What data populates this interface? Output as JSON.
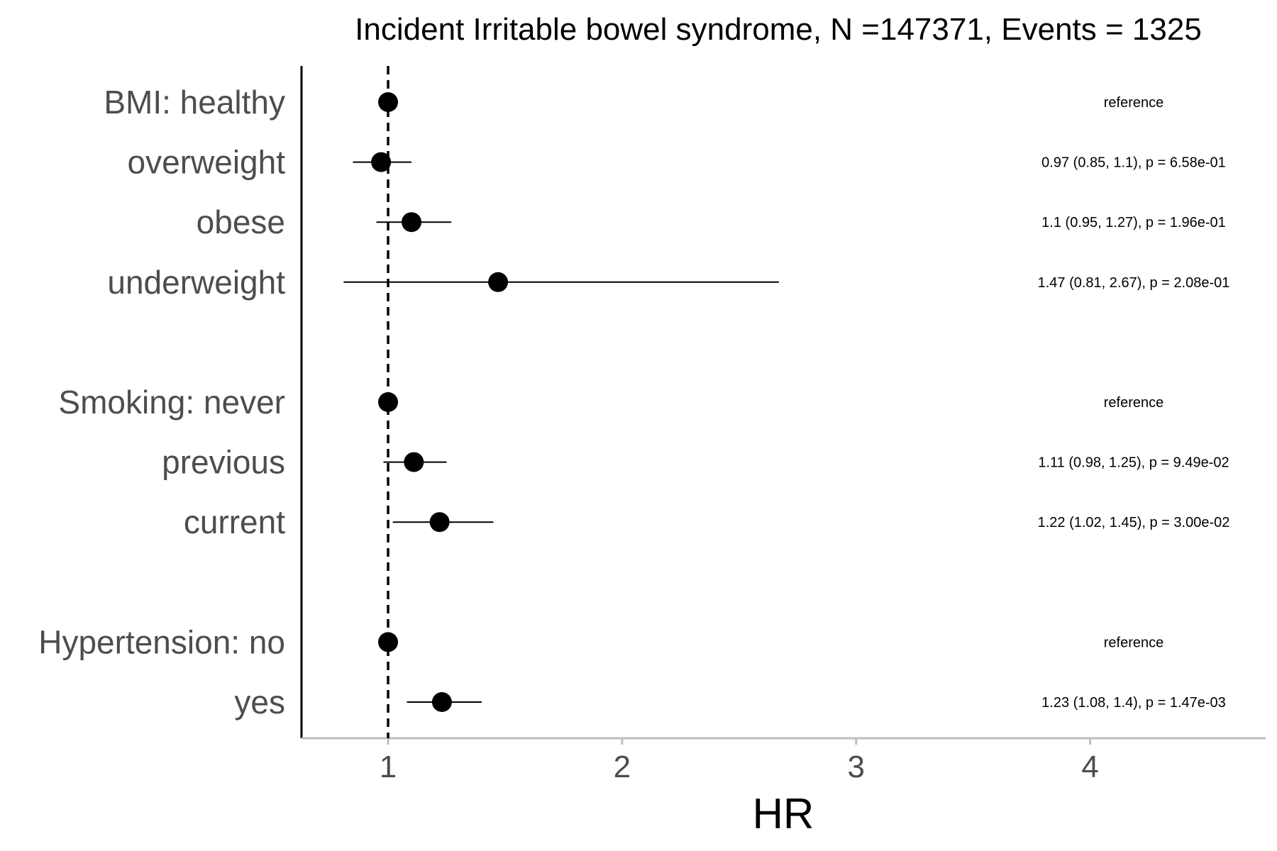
{
  "chart_data": {
    "type": "forest",
    "title": "Incident Irritable bowel syndrome, N =147371, Events = 1325",
    "xlabel": "HR",
    "ylabel": "",
    "x_ticks": [
      1,
      2,
      3,
      4
    ],
    "xlim": [
      0.63,
      4.75
    ],
    "reference_line": 1,
    "grid": false,
    "rows": [
      {
        "label": "BMI: healthy",
        "hr": 1.0,
        "lo": null,
        "hi": null,
        "annotation": "reference"
      },
      {
        "label": "overweight",
        "hr": 0.97,
        "lo": 0.85,
        "hi": 1.1,
        "annotation": "0.97 (0.85, 1.1), p = 6.58e-01"
      },
      {
        "label": "obese",
        "hr": 1.1,
        "lo": 0.95,
        "hi": 1.27,
        "annotation": "1.1 (0.95, 1.27), p = 1.96e-01"
      },
      {
        "label": "underweight",
        "hr": 1.47,
        "lo": 0.81,
        "hi": 2.67,
        "annotation": "1.47 (0.81, 2.67), p = 2.08e-01"
      },
      {
        "label": "Smoking: never",
        "hr": 1.0,
        "lo": null,
        "hi": null,
        "annotation": "reference"
      },
      {
        "label": "previous",
        "hr": 1.11,
        "lo": 0.98,
        "hi": 1.25,
        "annotation": "1.11 (0.98, 1.25), p = 9.49e-02"
      },
      {
        "label": "current",
        "hr": 1.22,
        "lo": 1.02,
        "hi": 1.45,
        "annotation": "1.22 (1.02, 1.45), p = 3.00e-02"
      },
      {
        "label": "Hypertension: no",
        "hr": 1.0,
        "lo": null,
        "hi": null,
        "annotation": "reference"
      },
      {
        "label": "yes",
        "hr": 1.23,
        "lo": 1.08,
        "hi": 1.4,
        "annotation": "1.23 (1.08, 1.4), p = 1.47e-03"
      }
    ]
  }
}
